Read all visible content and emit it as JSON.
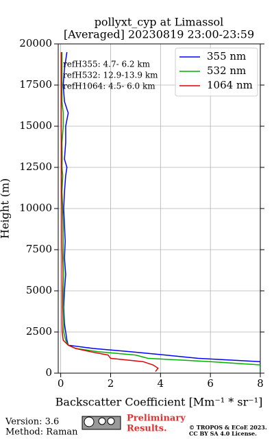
{
  "chart_data": {
    "type": "line",
    "title": "pollyxt_cyp at Limassol",
    "subtitle": "[Averaged] 20230819 23:00-23:59",
    "xlabel": "Backscatter Coefficient [Mm⁻¹ * sr⁻¹]",
    "ylabel": "Height (m)",
    "heights": [
      100,
      300,
      500,
      700,
      900,
      1100,
      1300,
      1500,
      1700,
      2000,
      2500,
      3000,
      4000,
      5000,
      6000,
      7000,
      8000,
      9000,
      10000,
      11000,
      12000,
      12500,
      13000,
      14000,
      15000,
      15800,
      16500,
      17500,
      18500,
      19500
    ],
    "series": [
      {
        "name": "355 nm",
        "color": "#0000ff",
        "values": [
          8,
          8,
          8,
          8,
          5.5,
          4.2,
          2.8,
          1.3,
          0.3,
          0.25,
          0.2,
          0.15,
          0.12,
          0.15,
          0.2,
          0.15,
          0.18,
          0.15,
          0.12,
          0.15,
          0.2,
          0.25,
          0.15,
          0.2,
          0.2,
          0.3,
          0.15,
          0.1,
          0.15,
          0.25
        ]
      },
      {
        "name": "532 nm",
        "color": "#00b000",
        "values": [
          8,
          8,
          8,
          6,
          3.5,
          3.0,
          1.5,
          0.6,
          0.3,
          0.2,
          0.12,
          0.12,
          0.1,
          0.1,
          0.12,
          0.1,
          0.1,
          0.1,
          0.08,
          0.05,
          0.08,
          0.05,
          0.06,
          0.05,
          0.1,
          0.1,
          0.05,
          0.05,
          0.05,
          0.05
        ]
      },
      {
        "name": "1064 nm",
        "color": "#e00000",
        "values": [
          3.8,
          3.9,
          3.7,
          3.3,
          2.0,
          1.9,
          1.2,
          0.6,
          0.3,
          0.1,
          0.06,
          0.05,
          0.05,
          0.05,
          0.05,
          0.05,
          0.04,
          0.04,
          0.04,
          0.03,
          0.03,
          0.03,
          0.03,
          0.03,
          0.02,
          0.02,
          0.02,
          0.02,
          0.02,
          0.02
        ]
      }
    ],
    "xlim": [
      -0.1,
      8
    ],
    "xticks": [
      0,
      2,
      4,
      6,
      8
    ],
    "ylim": [
      0,
      20000
    ],
    "yticks": [
      0,
      2500,
      5000,
      7500,
      10000,
      12500,
      15000,
      17500,
      20000
    ],
    "grid": true,
    "legend": "upper right",
    "annotations": [
      "refH355:  4.7- 6.2 km",
      "refH532: 12.9-13.9 km",
      "refH1064:  4.5- 6.0 km"
    ]
  },
  "footer": {
    "version": "Version: 3.6",
    "method": "Method: Raman",
    "preliminary": [
      "Preliminary",
      "Results."
    ],
    "copyright": [
      "© TROPOS & ECoE 2023.",
      "CC BY SA 4.0 License."
    ]
  }
}
